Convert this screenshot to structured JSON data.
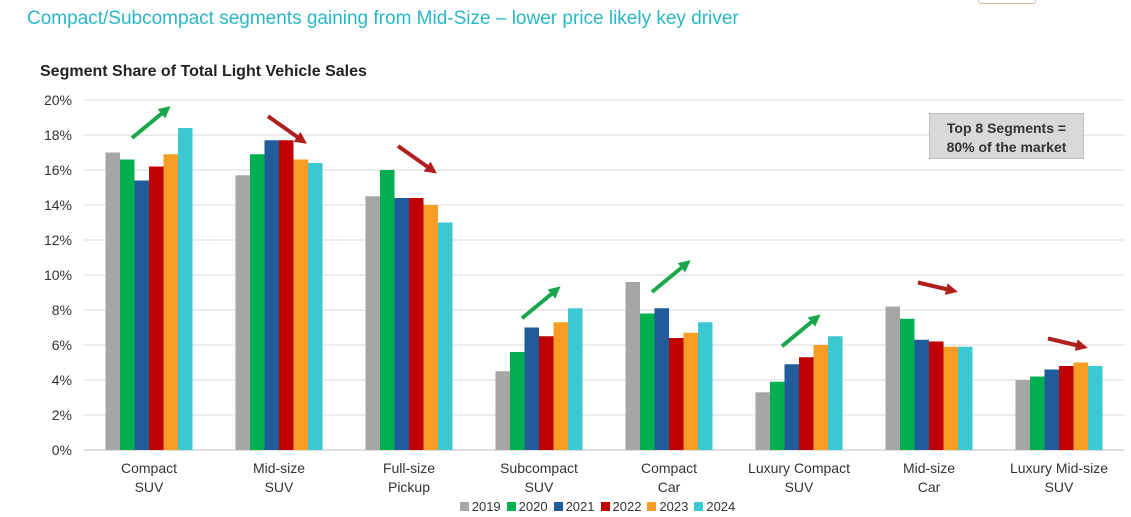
{
  "slide": {
    "title": "Compact/Subcompact segments gaining from Mid-Size – lower price likely key driver"
  },
  "callout": {
    "line1": "Top 8 Segments =",
    "line2": "80% of the market"
  },
  "colors": {
    "title": "#29b7c6",
    "up_arrow": "#1aa64a",
    "down_arrow": "#b01e1e",
    "gridline": "#d9d9d9"
  },
  "chart_data": {
    "type": "bar",
    "title": "Segment Share of Total Light Vehicle Sales",
    "xlabel": "",
    "ylabel": "",
    "ylim": [
      0,
      20
    ],
    "yticks": [
      "0%",
      "2%",
      "4%",
      "6%",
      "8%",
      "10%",
      "12%",
      "14%",
      "16%",
      "18%",
      "20%"
    ],
    "grid": true,
    "legend_position": "bottom",
    "categories": [
      [
        "Compact",
        "SUV"
      ],
      [
        "Mid-size",
        "SUV"
      ],
      [
        "Full-size",
        "Pickup"
      ],
      [
        "Subcompact",
        "SUV"
      ],
      [
        "Compact",
        "Car"
      ],
      [
        "Luxury Compact",
        "SUV"
      ],
      [
        "Mid-size",
        "Car"
      ],
      [
        "Luxury Mid-size",
        "SUV"
      ]
    ],
    "series": [
      {
        "name": "2019",
        "color": "#a6a6a6",
        "values": [
          17.0,
          15.7,
          14.5,
          4.5,
          9.6,
          3.3,
          8.2,
          4.0
        ]
      },
      {
        "name": "2020",
        "color": "#00b050",
        "values": [
          16.6,
          16.9,
          16.0,
          5.6,
          7.8,
          3.9,
          7.5,
          4.2
        ]
      },
      {
        "name": "2021",
        "color": "#1f5c99",
        "values": [
          15.4,
          17.7,
          14.4,
          7.0,
          8.1,
          4.9,
          6.3,
          4.6
        ]
      },
      {
        "name": "2022",
        "color": "#c00000",
        "values": [
          16.2,
          17.7,
          14.4,
          6.5,
          6.4,
          5.3,
          6.2,
          4.8
        ]
      },
      {
        "name": "2023",
        "color": "#f79c25",
        "values": [
          16.9,
          16.6,
          14.0,
          7.3,
          6.7,
          6.0,
          5.9,
          5.0
        ]
      },
      {
        "name": "2024",
        "color": "#3cc8d0",
        "values": [
          18.4,
          16.4,
          13.0,
          8.1,
          7.3,
          6.5,
          5.9,
          4.8
        ]
      }
    ],
    "trend_arrows": [
      "up",
      "down",
      "down",
      "up",
      "up",
      "up",
      "down",
      "down"
    ]
  }
}
